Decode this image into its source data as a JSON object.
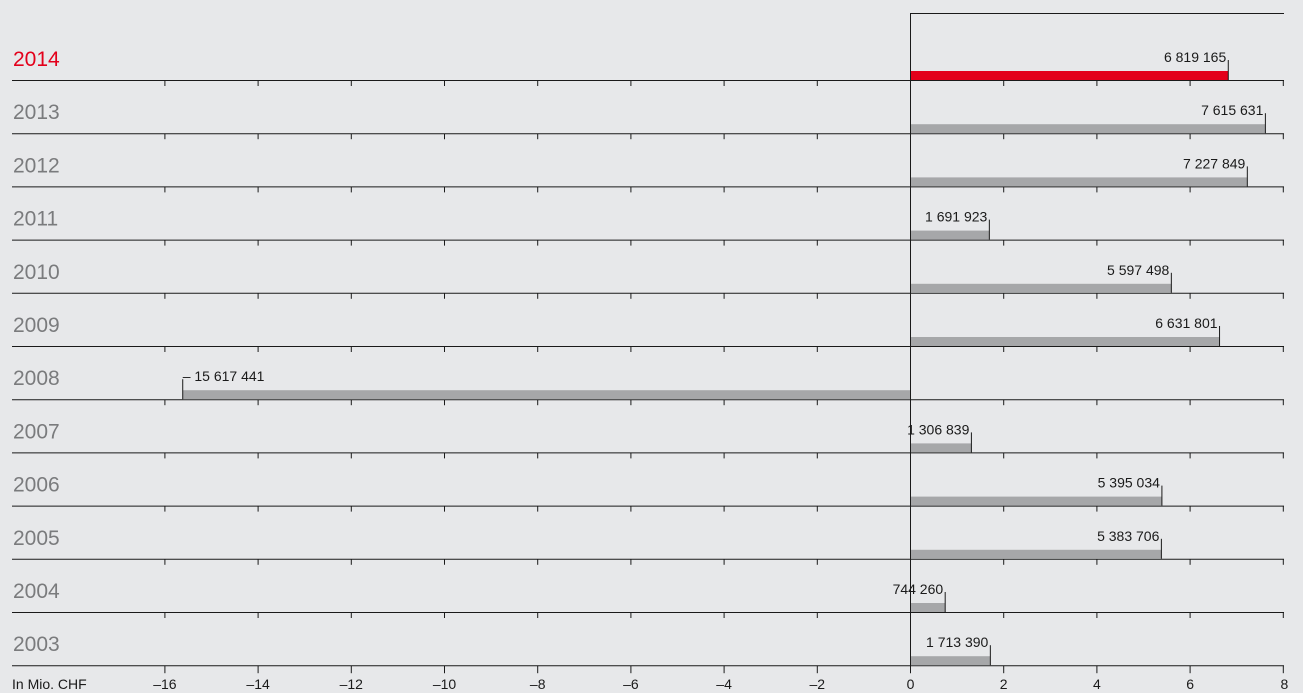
{
  "chart_data": {
    "type": "bar",
    "orientation": "horizontal",
    "unit_label": "In Mio. CHF",
    "categories": [
      "2014",
      "2013",
      "2012",
      "2011",
      "2010",
      "2009",
      "2008",
      "2007",
      "2006",
      "2005",
      "2004",
      "2003"
    ],
    "values": [
      6819165,
      7615631,
      7227849,
      1691923,
      5597498,
      6631801,
      -15617441,
      1306839,
      5395034,
      5383706,
      744260,
      1713390
    ],
    "value_labels": [
      "6 819 165",
      "7 615 631",
      "7 227 849",
      "1 691 923",
      "5 597 498",
      "6 631 801",
      "– 15 617 441",
      "1 306 839",
      "5 395 034",
      "5 383 706",
      "744 260",
      "1 713 390"
    ],
    "highlight_category": "2014",
    "xlim": [
      -18,
      8
    ],
    "x_tick_values": [
      -16,
      -14,
      -12,
      -10,
      -8,
      -6,
      -4,
      -2,
      0,
      2,
      4,
      6,
      8
    ],
    "x_tick_labels": [
      "–16",
      "–14",
      "–12",
      "–10",
      "–8",
      "–6",
      "–4",
      "–2",
      "0",
      "2",
      "4",
      "6",
      "8"
    ],
    "colors": {
      "highlight": "#e3001b",
      "bar": "#a6a7a9",
      "axis": "#1a1a1a",
      "background": "#e7e8ea"
    },
    "grid": false
  }
}
